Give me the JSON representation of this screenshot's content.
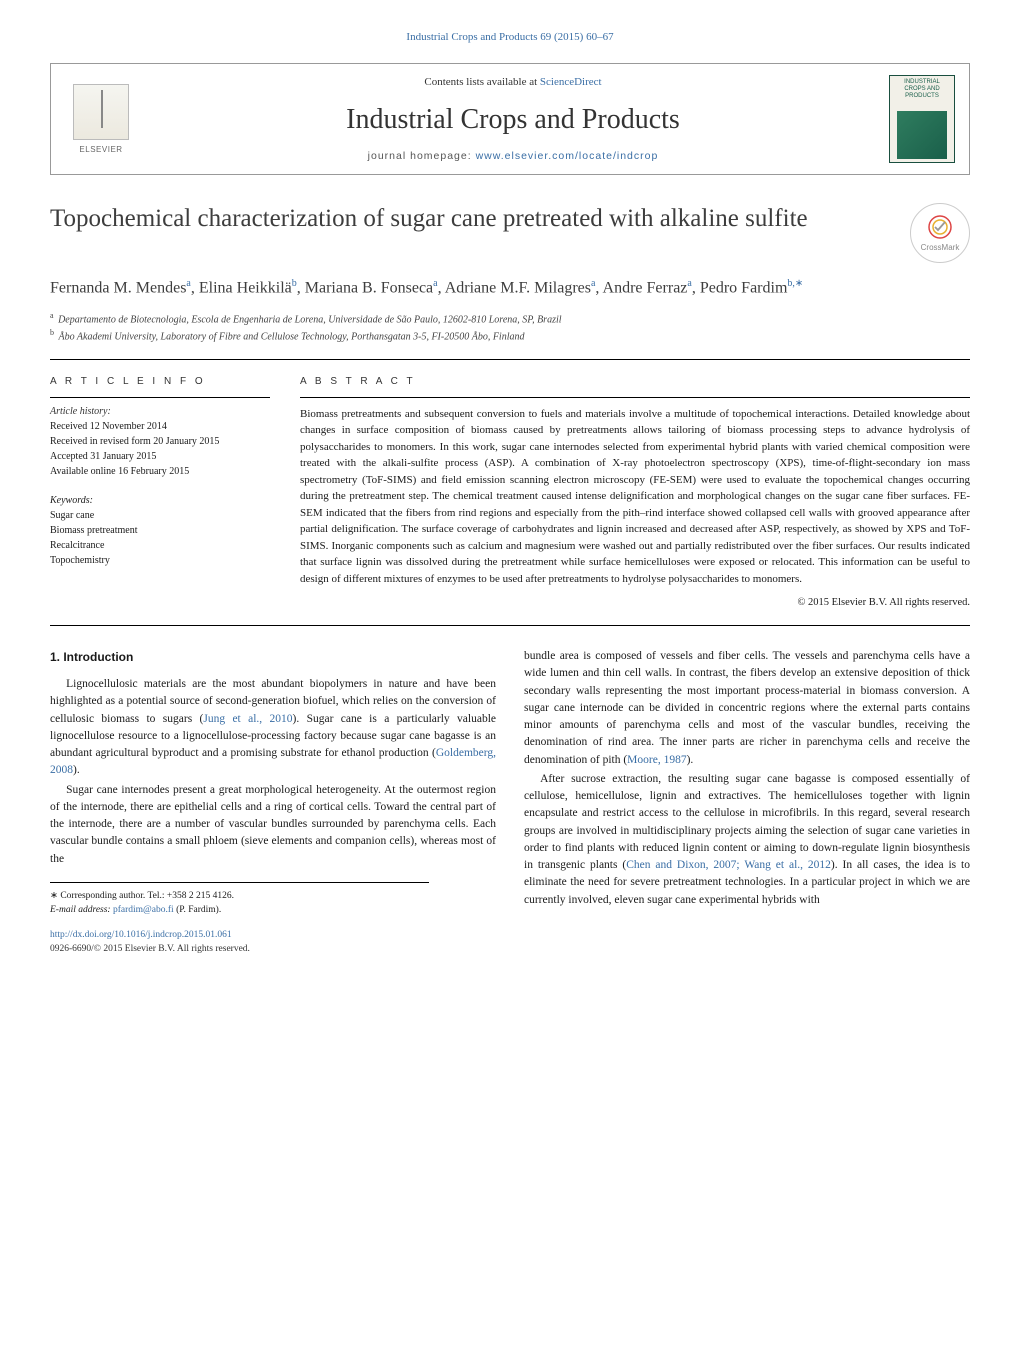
{
  "journal_ref": "Industrial Crops and Products 69 (2015) 60–67",
  "header": {
    "elsevier_label": "ELSEVIER",
    "contents_prefix": "Contents lists available at ",
    "contents_link": "ScienceDirect",
    "journal_title": "Industrial Crops and Products",
    "homepage_prefix": "journal homepage: ",
    "homepage_link": "www.elsevier.com/locate/indcrop",
    "cover_title": "INDUSTRIAL CROPS AND PRODUCTS"
  },
  "crossmark_label": "CrossMark",
  "article": {
    "title": "Topochemical characterization of sugar cane pretreated with alkaline sulfite",
    "authors_html_parts": [
      {
        "name": "Fernanda M. Mendes",
        "sup": "a"
      },
      {
        "name": "Elina Heikkilä",
        "sup": "b"
      },
      {
        "name": "Mariana B. Fonseca",
        "sup": "a"
      },
      {
        "name": "Adriane M.F. Milagres",
        "sup": "a"
      },
      {
        "name": "Andre Ferraz",
        "sup": "a"
      },
      {
        "name": "Pedro Fardim",
        "sup": "b,",
        "corr": true
      }
    ],
    "affiliations": [
      {
        "key": "a",
        "text": "Departamento de Biotecnologia, Escola de Engenharia de Lorena, Universidade de São Paulo, 12602-810 Lorena, SP, Brazil"
      },
      {
        "key": "b",
        "text": "Åbo Akademi University, Laboratory of Fibre and Cellulose Technology, Porthansgatan 3-5, FI-20500 Åbo, Finland"
      }
    ]
  },
  "info": {
    "section_label": "A R T I C L E    I N F O",
    "history_head": "Article history:",
    "history": [
      "Received 12 November 2014",
      "Received in revised form 20 January 2015",
      "Accepted 31 January 2015",
      "Available online 16 February 2015"
    ],
    "keywords_head": "Keywords:",
    "keywords": [
      "Sugar cane",
      "Biomass pretreatment",
      "Recalcitrance",
      "Topochemistry"
    ]
  },
  "abstract": {
    "section_label": "A B S T R A C T",
    "text": "Biomass pretreatments and subsequent conversion to fuels and materials involve a multitude of topochemical interactions. Detailed knowledge about changes in surface composition of biomass caused by pretreatments allows tailoring of biomass processing steps to advance hydrolysis of polysaccharides to monomers. In this work, sugar cane internodes selected from experimental hybrid plants with varied chemical composition were treated with the alkali-sulfite process (ASP). A combination of X-ray photoelectron spectroscopy (XPS), time-of-flight-secondary ion mass spectrometry (ToF-SIMS) and field emission scanning electron microscopy (FE-SEM) were used to evaluate the topochemical changes occurring during the pretreatment step. The chemical treatment caused intense delignification and morphological changes on the sugar cane fiber surfaces. FE-SEM indicated that the fibers from rind regions and especially from the pith–rind interface showed collapsed cell walls with grooved appearance after partial delignification. The surface coverage of carbohydrates and lignin increased and decreased after ASP, respectively, as showed by XPS and ToF-SIMS. Inorganic components such as calcium and magnesium were washed out and partially redistributed over the fiber surfaces. Our results indicated that surface lignin was dissolved during the pretreatment while surface hemicelluloses were exposed or relocated. This information can be useful to design of different mixtures of enzymes to be used after pretreatments to hydrolyse polysaccharides to monomers.",
    "copyright": "© 2015 Elsevier B.V. All rights reserved."
  },
  "body": {
    "heading": "1.  Introduction",
    "p1_a": "Lignocellulosic materials are the most abundant biopolymers in nature and have been highlighted as a potential source of second-generation biofuel, which relies on the conversion of cellulosic biomass to sugars (",
    "p1_cite1": "Jung et al., 2010",
    "p1_b": "). Sugar cane is a particularly valuable lignocellulose resource to a lignocellulose-processing factory because sugar cane bagasse is an abundant agricultural byproduct and a promising substrate for ethanol production (",
    "p1_cite2": "Goldemberg, 2008",
    "p1_c": ").",
    "p2": "Sugar cane internodes present a great morphological heterogeneity. At the outermost region of the internode, there are epithelial cells and a ring of cortical cells. Toward the central part of the internode, there are a number of vascular bundles surrounded by parenchyma cells. Each vascular bundle contains a small phloem (sieve elements and companion cells), whereas most of the",
    "p3_a": "bundle area is composed of vessels and fiber cells. The vessels and parenchyma cells have a wide lumen and thin cell walls. In contrast, the fibers develop an extensive deposition of thick secondary walls representing the most important process-material in biomass conversion. A sugar cane internode can be divided in concentric regions where the external parts contains minor amounts of parenchyma cells and most of the vascular bundles, receiving the denomination of rind area. The inner parts are richer in parenchyma cells and receive the denomination of pith (",
    "p3_cite": "Moore, 1987",
    "p3_b": ").",
    "p4_a": "After sucrose extraction, the resulting sugar cane bagasse is composed essentially of cellulose, hemicellulose, lignin and extractives. The hemicelluloses together with lignin encapsulate and restrict access to the cellulose in microfibrils. In this regard, several research groups are involved in multidisciplinary projects aiming the selection of sugar cane varieties in order to find plants with reduced lignin content or aiming to down-regulate lignin biosynthesis in transgenic plants (",
    "p4_cite": "Chen and Dixon, 2007; Wang et al., 2012",
    "p4_b": "). In all cases, the idea is to eliminate the need for severe pretreatment technologies. In a particular project in which we are currently involved, eleven sugar cane experimental hybrids with"
  },
  "footnote": {
    "corr_label": "∗  Corresponding author. Tel.: +358 2 215 4126.",
    "email_label": "E-mail address: ",
    "email": "pfardim@abo.fi",
    "email_suffix": " (P. Fardim)."
  },
  "footer": {
    "doi": "http://dx.doi.org/10.1016/j.indcrop.2015.01.061",
    "issn_line": "0926-6690/© 2015 Elsevier B.V. All rights reserved."
  },
  "colors": {
    "link": "#3a6ea5",
    "text": "#1a1a1a",
    "cover_green": "#1a5f4a"
  }
}
